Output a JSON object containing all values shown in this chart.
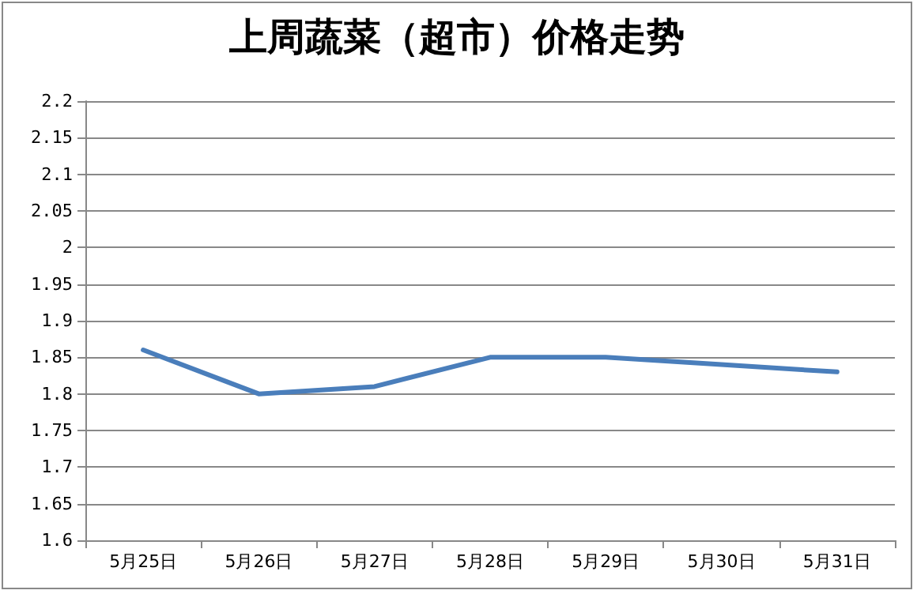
{
  "chart_data": {
    "type": "line",
    "title": "上周蔬菜（超市）价格走势",
    "categories": [
      "5月25日",
      "5月26日",
      "5月27日",
      "5月28日",
      "5月29日",
      "5月30日",
      "5月31日"
    ],
    "series": [
      {
        "color": "#4a7ebb",
        "values": [
          1.86,
          1.8,
          1.81,
          1.85,
          1.85,
          1.84,
          1.83
        ]
      }
    ],
    "ylim": [
      1.6,
      2.2
    ],
    "yticks": [
      1.6,
      1.65,
      1.7,
      1.75,
      1.8,
      1.85,
      1.9,
      1.95,
      2,
      2.05,
      2.1,
      2.15,
      2.2
    ],
    "grid": "y",
    "marker": "none",
    "line_style": "solid"
  }
}
